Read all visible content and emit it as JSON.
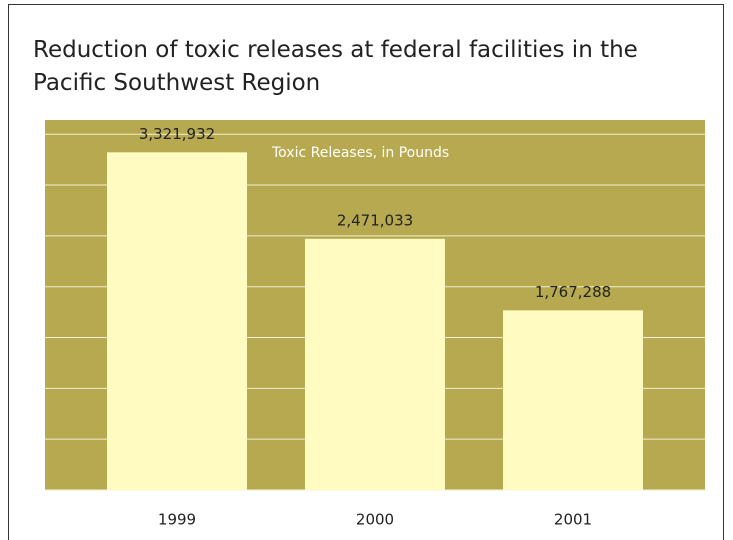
{
  "chart_data": {
    "type": "bar",
    "title": "Reduction of toxic releases at federal facilities in the Pacific Southwest Region",
    "ylabel": "Toxic Releases, in Pounds",
    "categories": [
      "1999",
      "2000",
      "2001"
    ],
    "values": [
      3321932,
      2471033,
      1767288
    ],
    "value_labels": [
      "3,321,932",
      "2,471,033",
      "1,767,288"
    ],
    "color": "#fffbc1",
    "background": "#b6a94f",
    "ylim": [
      0,
      3640000
    ],
    "yticks": [
      0,
      500000,
      1000000,
      1500000,
      2000000,
      2500000,
      3000000,
      3500000
    ],
    "grid": true
  }
}
